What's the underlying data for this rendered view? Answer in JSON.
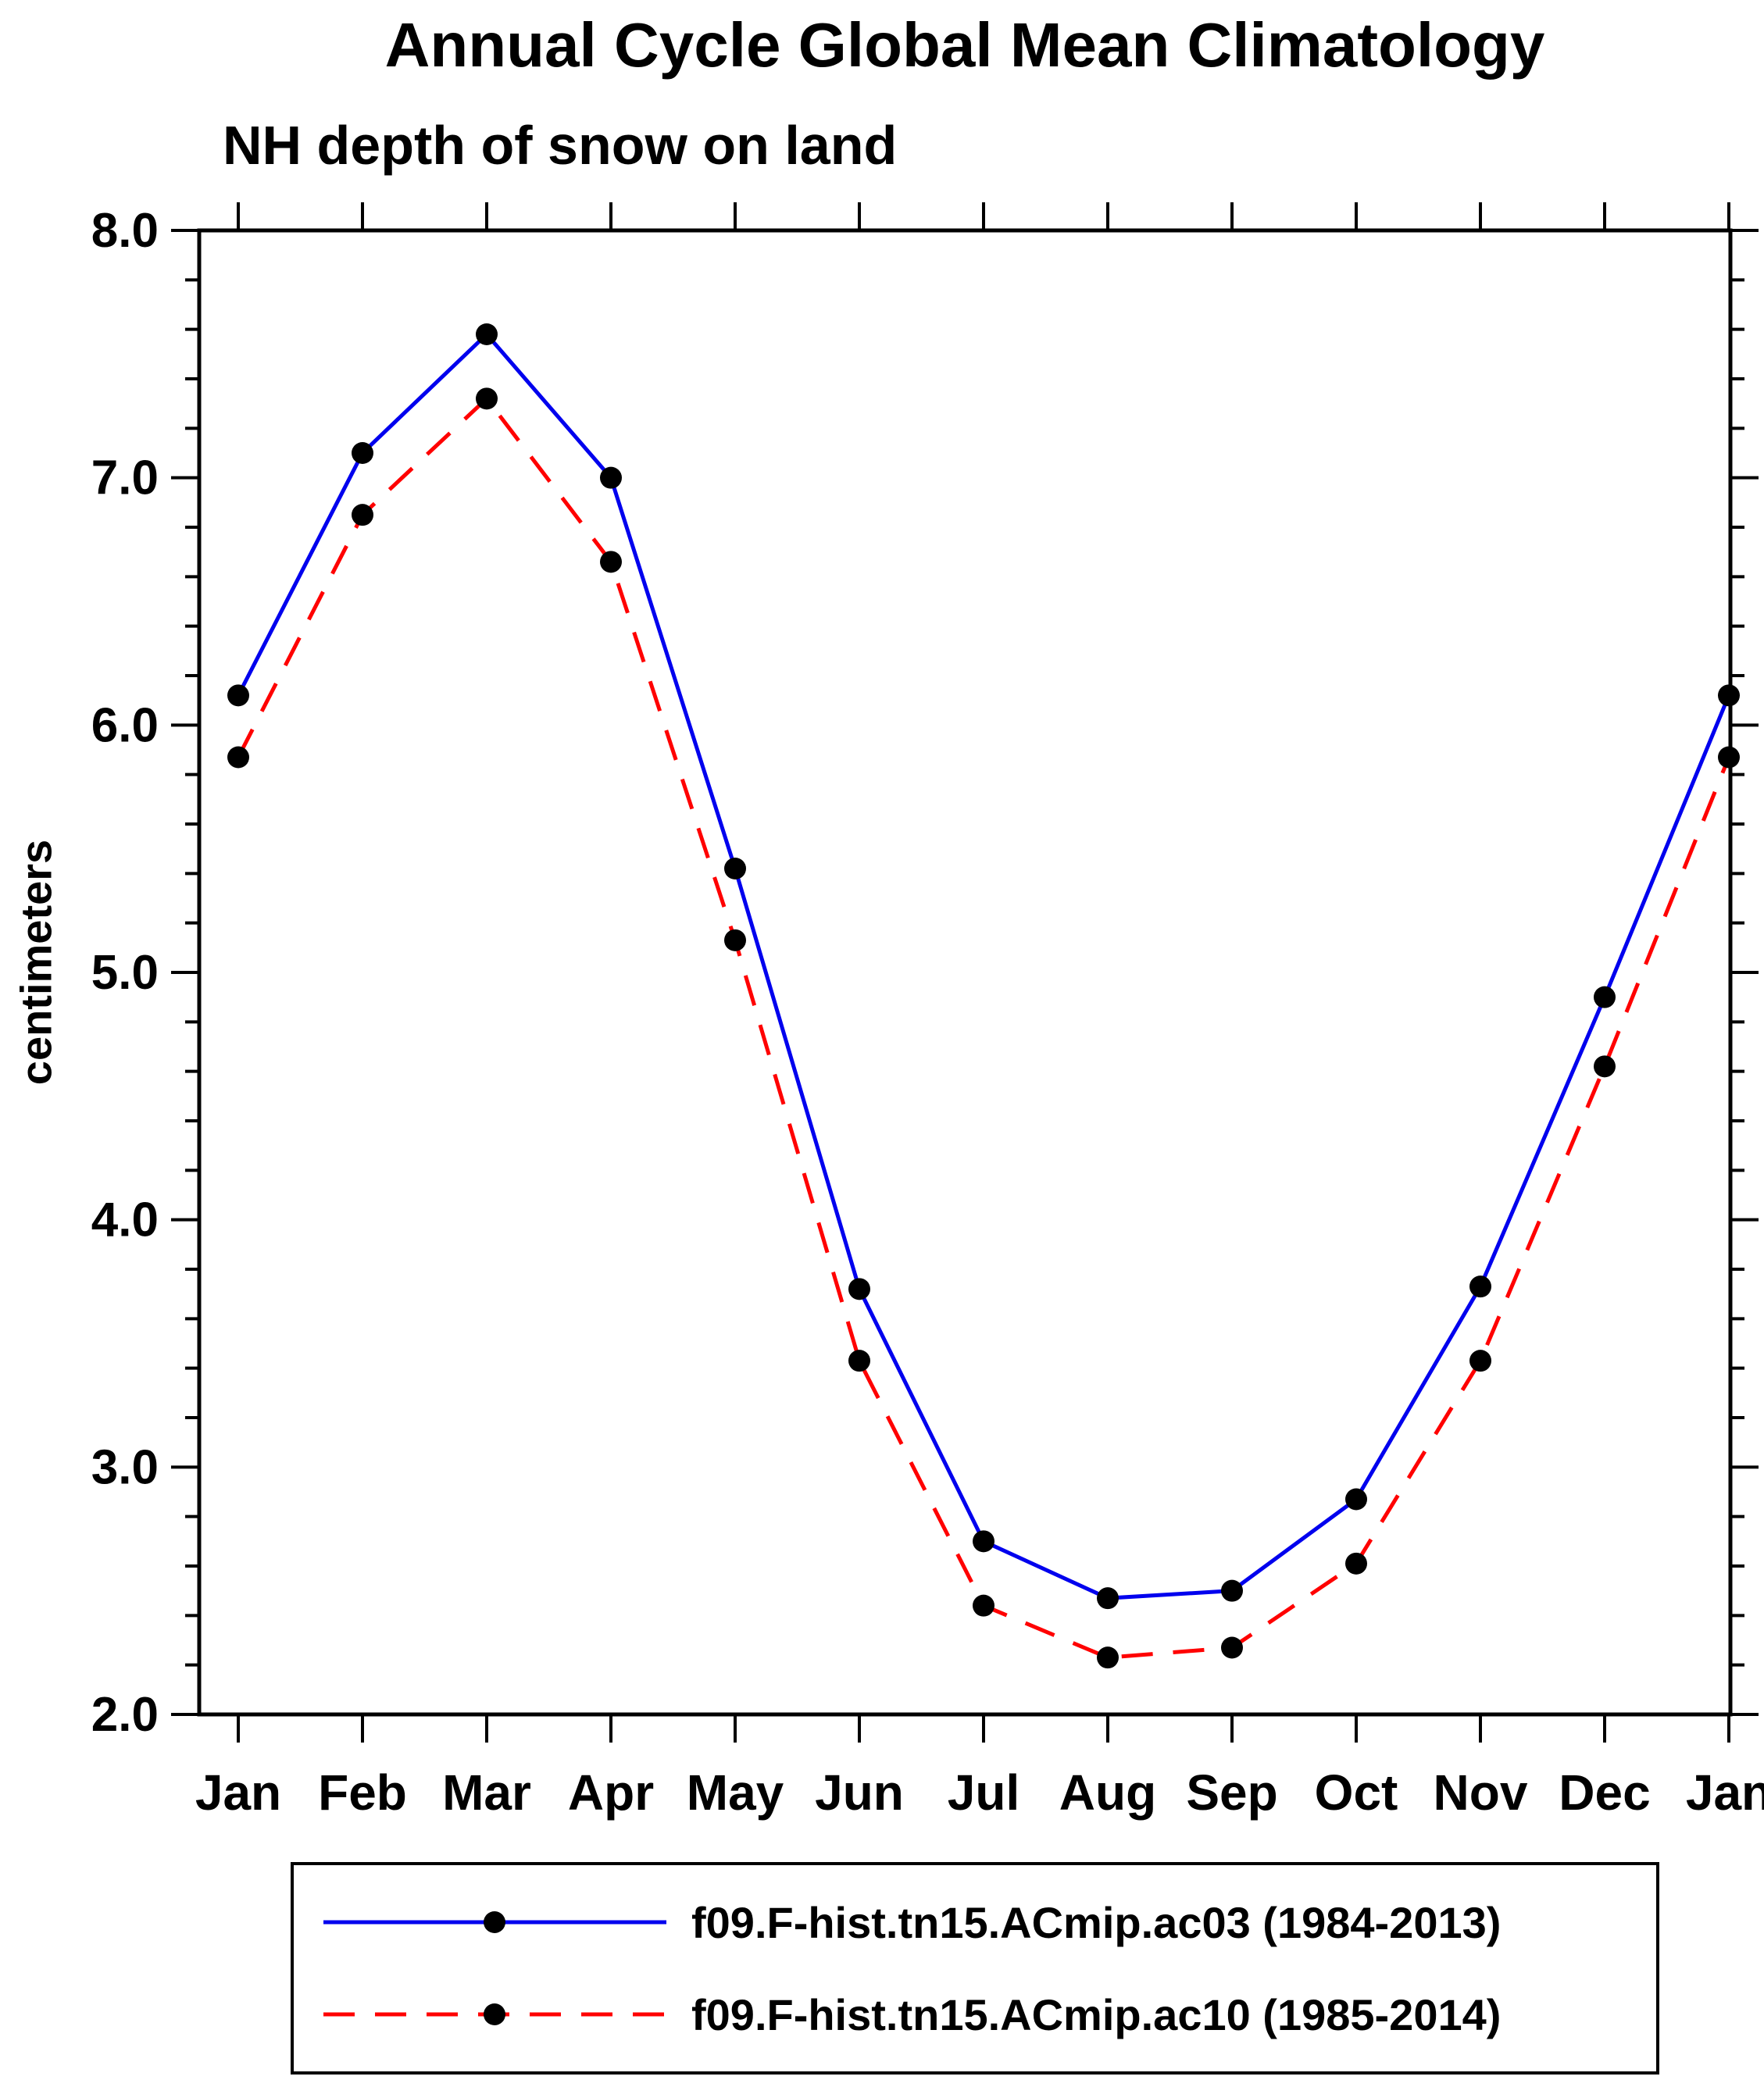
{
  "chart_data": {
    "type": "line",
    "title": "Annual Cycle Global Mean Climatology",
    "subtitle": "NH depth of snow on land",
    "ylabel": "centimeters",
    "x_tick_labels": [
      "Jan",
      "Feb",
      "Mar",
      "Apr",
      "May",
      "Jun",
      "Jul",
      "Aug",
      "Sep",
      "Oct",
      "Nov",
      "Dec",
      "Jan"
    ],
    "ylim": [
      2.0,
      8.0
    ],
    "y_major_step": 1.0,
    "y_minor_step": 0.2,
    "grid": false,
    "legend_position": "bottom-box",
    "axis_color": "#000000",
    "marker_color": "#000000",
    "series": [
      {
        "name": "f09.F-hist.tn15.ACmip.ac03 (1984-2013)",
        "color": "#0000ee",
        "line_style": "solid",
        "values": [
          6.12,
          7.1,
          7.58,
          7.0,
          5.42,
          3.72,
          2.7,
          2.47,
          2.5,
          2.87,
          3.73,
          4.9,
          6.12
        ]
      },
      {
        "name": "f09.F-hist.tn15.ACmip.ac10 (1985-2014)",
        "color": "#ff0000",
        "line_style": "dashed",
        "values": [
          5.87,
          6.85,
          7.32,
          6.66,
          5.13,
          3.43,
          2.44,
          2.23,
          2.27,
          2.61,
          3.43,
          4.62,
          5.87
        ]
      }
    ]
  }
}
